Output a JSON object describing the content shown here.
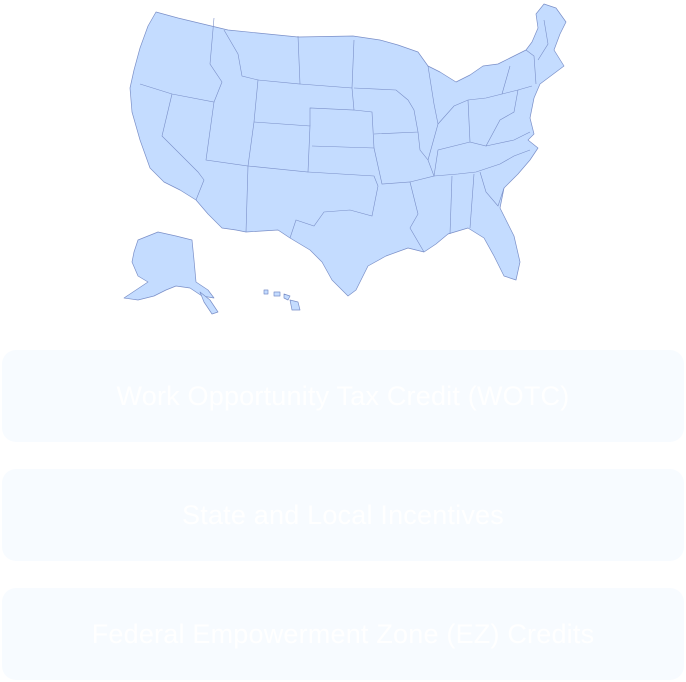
{
  "map": {
    "icon": "us-states-map",
    "fill_color": "#c4dcff",
    "stroke_color": "#7a8fc8"
  },
  "programs": [
    {
      "label": "Work Opportunity Tax Credit (WOTC)"
    },
    {
      "label": "State and Local Incentives"
    },
    {
      "label": "Federal Empowerment Zone (EZ) Credits"
    }
  ],
  "colors": {
    "card_bg": "#f7fbff",
    "card_text": "#ffffff"
  }
}
